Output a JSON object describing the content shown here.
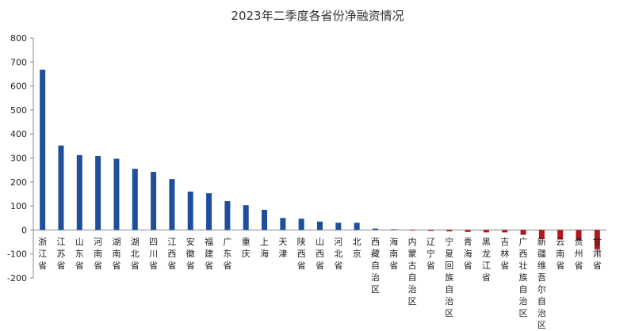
{
  "chart_data": {
    "type": "bar",
    "title": "2023年二季度各省份净融资情况",
    "xlabel": "",
    "ylabel": "",
    "ylim": [
      -200,
      800
    ],
    "yticks": [
      -200,
      -100,
      0,
      100,
      200,
      300,
      400,
      500,
      600,
      700,
      800
    ],
    "grid": false,
    "legend": "none",
    "colors": {
      "positive": "#1f4e9c",
      "negative": "#b3161b"
    },
    "categories": [
      "浙江省",
      "江苏省",
      "山东省",
      "河南省",
      "湖南省",
      "湖北省",
      "四川省",
      "江西省",
      "安徽省",
      "福建省",
      "广东省",
      "重庆",
      "上海",
      "天津",
      "陕西省",
      "山西省",
      "河北省",
      "北京",
      "西藏自治区",
      "海南省",
      "内蒙古自治区",
      "辽宁省",
      "宁夏回族自治区",
      "青海省",
      "黑龙江省",
      "吉林省",
      "广西壮族自治区",
      "新疆维吾尔自治区",
      "云南省",
      "贵州省",
      "甘肃省"
    ],
    "values": [
      668,
      352,
      312,
      308,
      297,
      255,
      242,
      212,
      160,
      153,
      120,
      103,
      84,
      50,
      47,
      35,
      30,
      30,
      6,
      3,
      -2,
      -4,
      -6,
      -8,
      -10,
      -10,
      -20,
      -38,
      -40,
      -42,
      -80
    ]
  }
}
